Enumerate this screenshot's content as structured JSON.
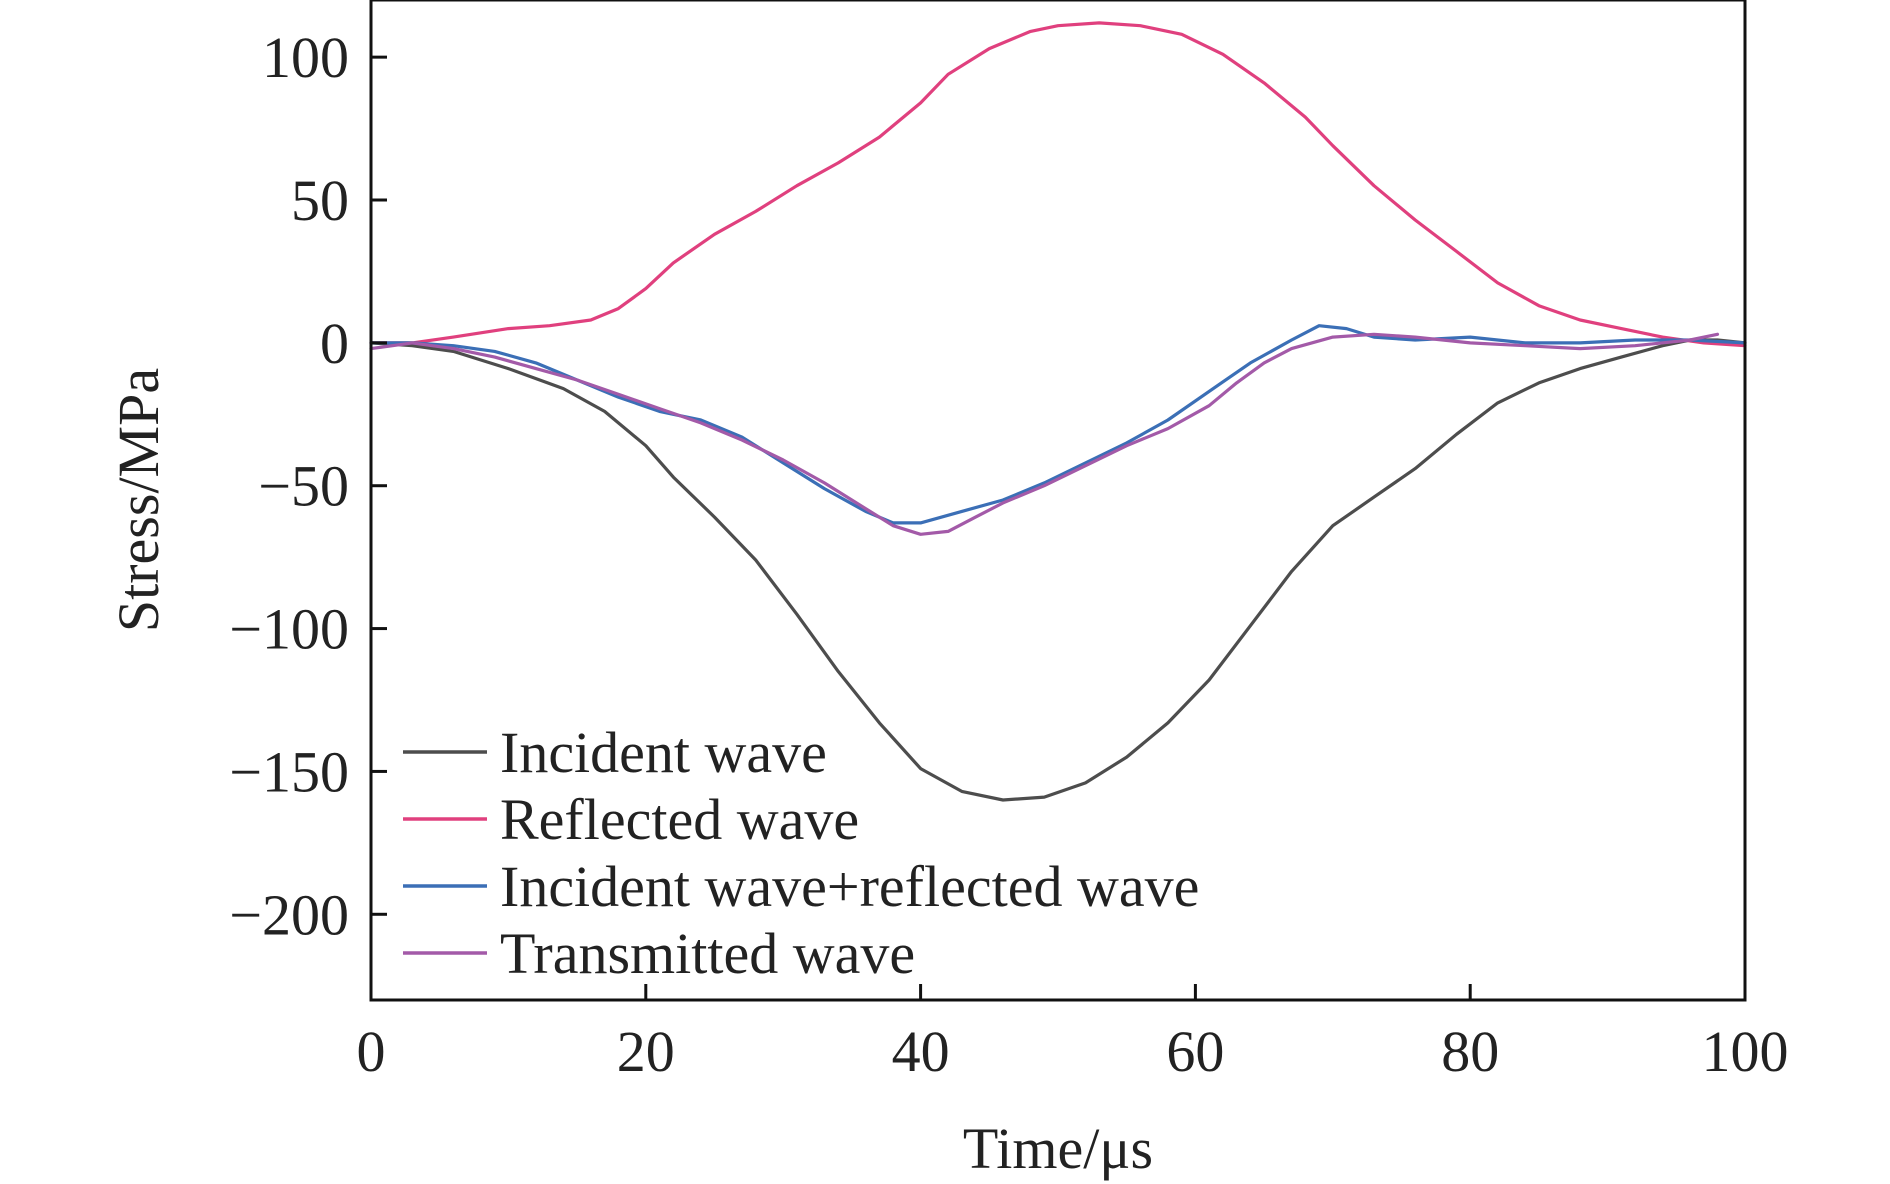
{
  "chart_data": {
    "type": "line",
    "xlabel": "Time/μs",
    "ylabel": "Stress/MPa",
    "xlim": [
      0,
      100
    ],
    "ylim": [
      -230,
      120
    ],
    "xticks": [
      "0",
      "20",
      "40",
      "60",
      "80",
      "100"
    ],
    "yticks": [
      "100",
      "50",
      "0",
      "−50",
      "−100",
      "−150",
      "−200"
    ],
    "xtick_values": [
      0,
      20,
      40,
      60,
      80,
      100
    ],
    "ytick_values": [
      100,
      50,
      0,
      -50,
      -100,
      -150,
      -200
    ],
    "grid": false,
    "legend_position": "bottom-left",
    "series": [
      {
        "name": "Incident wave",
        "color": "#4d4d4d",
        "points": [
          [
            0,
            0
          ],
          [
            3,
            -1
          ],
          [
            6,
            -3
          ],
          [
            10,
            -9
          ],
          [
            14,
            -16
          ],
          [
            17,
            -24
          ],
          [
            20,
            -36
          ],
          [
            22,
            -47
          ],
          [
            25,
            -61
          ],
          [
            28,
            -76
          ],
          [
            31,
            -95
          ],
          [
            34,
            -115
          ],
          [
            37,
            -133
          ],
          [
            40,
            -149
          ],
          [
            43,
            -157
          ],
          [
            46,
            -160
          ],
          [
            49,
            -159
          ],
          [
            52,
            -154
          ],
          [
            55,
            -145
          ],
          [
            58,
            -133
          ],
          [
            61,
            -118
          ],
          [
            64,
            -99
          ],
          [
            67,
            -80
          ],
          [
            70,
            -64
          ],
          [
            73,
            -54
          ],
          [
            76,
            -44
          ],
          [
            79,
            -32
          ],
          [
            82,
            -21
          ],
          [
            85,
            -14
          ],
          [
            88,
            -9
          ],
          [
            91,
            -5
          ],
          [
            94,
            -1
          ],
          [
            96,
            1
          ],
          [
            98,
            1
          ],
          [
            100,
            0
          ]
        ]
      },
      {
        "name": "Reflected wave",
        "color": "#e0407e",
        "points": [
          [
            0,
            0
          ],
          [
            3,
            0
          ],
          [
            6,
            2
          ],
          [
            10,
            5
          ],
          [
            13,
            6
          ],
          [
            16,
            8
          ],
          [
            18,
            12
          ],
          [
            20,
            19
          ],
          [
            22,
            28
          ],
          [
            25,
            38
          ],
          [
            28,
            46
          ],
          [
            31,
            55
          ],
          [
            34,
            63
          ],
          [
            37,
            72
          ],
          [
            40,
            84
          ],
          [
            42,
            94
          ],
          [
            45,
            103
          ],
          [
            48,
            109
          ],
          [
            50,
            111
          ],
          [
            53,
            112
          ],
          [
            56,
            111
          ],
          [
            59,
            108
          ],
          [
            62,
            101
          ],
          [
            65,
            91
          ],
          [
            68,
            79
          ],
          [
            70,
            69
          ],
          [
            73,
            55
          ],
          [
            76,
            43
          ],
          [
            79,
            32
          ],
          [
            82,
            21
          ],
          [
            85,
            13
          ],
          [
            88,
            8
          ],
          [
            91,
            5
          ],
          [
            94,
            2
          ],
          [
            97,
            0
          ],
          [
            100,
            -1
          ]
        ]
      },
      {
        "name": "Incident wave+reflected wave",
        "color": "#3b6fb6",
        "points": [
          [
            0,
            0
          ],
          [
            3,
            0
          ],
          [
            6,
            -1
          ],
          [
            9,
            -3
          ],
          [
            12,
            -7
          ],
          [
            15,
            -13
          ],
          [
            18,
            -19
          ],
          [
            21,
            -24
          ],
          [
            24,
            -27
          ],
          [
            27,
            -33
          ],
          [
            30,
            -42
          ],
          [
            33,
            -51
          ],
          [
            36,
            -59
          ],
          [
            38,
            -63
          ],
          [
            40,
            -63
          ],
          [
            43,
            -59
          ],
          [
            46,
            -55
          ],
          [
            49,
            -49
          ],
          [
            52,
            -42
          ],
          [
            55,
            -35
          ],
          [
            58,
            -27
          ],
          [
            61,
            -17
          ],
          [
            64,
            -7
          ],
          [
            67,
            1
          ],
          [
            69,
            6
          ],
          [
            71,
            5
          ],
          [
            73,
            2
          ],
          [
            76,
            1
          ],
          [
            80,
            2
          ],
          [
            84,
            0
          ],
          [
            88,
            0
          ],
          [
            92,
            1
          ],
          [
            96,
            1
          ],
          [
            100,
            0
          ]
        ]
      },
      {
        "name": "Transmitted wave",
        "color": "#a35aa8",
        "points": [
          [
            0,
            -2
          ],
          [
            3,
            0
          ],
          [
            6,
            -2
          ],
          [
            9,
            -5
          ],
          [
            12,
            -9
          ],
          [
            15,
            -13
          ],
          [
            18,
            -18
          ],
          [
            21,
            -23
          ],
          [
            24,
            -28
          ],
          [
            27,
            -34
          ],
          [
            30,
            -41
          ],
          [
            33,
            -49
          ],
          [
            36,
            -58
          ],
          [
            38,
            -64
          ],
          [
            40,
            -67
          ],
          [
            42,
            -66
          ],
          [
            44,
            -61
          ],
          [
            46,
            -56
          ],
          [
            49,
            -50
          ],
          [
            52,
            -43
          ],
          [
            55,
            -36
          ],
          [
            58,
            -30
          ],
          [
            61,
            -22
          ],
          [
            63,
            -14
          ],
          [
            65,
            -7
          ],
          [
            67,
            -2
          ],
          [
            70,
            2
          ],
          [
            73,
            3
          ],
          [
            76,
            2
          ],
          [
            80,
            0
          ],
          [
            84,
            -1
          ],
          [
            88,
            -2
          ],
          [
            92,
            -1
          ],
          [
            96,
            1
          ],
          [
            98,
            3
          ]
        ]
      }
    ]
  }
}
